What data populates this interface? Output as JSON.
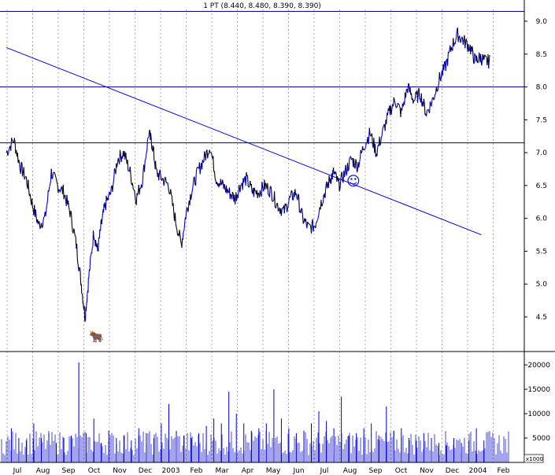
{
  "chart_data": {
    "type": "line",
    "title": "1 PT (8.440, 8.480, 8.390, 8.390)",
    "price_ylim": [
      4.0,
      9.25
    ],
    "price_y_ticks": [
      4.5,
      5.0,
      5.5,
      6.0,
      6.5,
      7.0,
      7.5,
      8.0,
      8.5,
      9.0
    ],
    "price_y_tick_labels": [
      "4.5",
      "5.0",
      "5.5",
      "6.0",
      "6.5",
      "7.0",
      "7.5",
      "8.0",
      "8.5",
      "9.0"
    ],
    "volume_ylim": [
      0,
      24000
    ],
    "volume_y_ticks": [
      5000,
      10000,
      15000,
      20000
    ],
    "volume_y_tick_labels": [
      "5000",
      "10000",
      "15000",
      "20000"
    ],
    "volume_unit_label": "x1000",
    "month_labels": [
      "Jul",
      "Aug",
      "Sep",
      "Oct",
      "Nov",
      "Dec",
      "2003",
      "Feb",
      "Mar",
      "Apr",
      "May",
      "Jun",
      "Jul",
      "Aug",
      "Sep",
      "Oct",
      "Nov",
      "Dec",
      "2004",
      "Feb"
    ],
    "grid": true,
    "horizontal_levels": [
      9.15,
      8.0,
      7.15
    ],
    "trendline": {
      "x": [
        0,
        19.0
      ],
      "y": [
        8.6,
        5.75
      ]
    },
    "price_series": {
      "name": "",
      "x": [
        0,
        0.3,
        0.55,
        0.8,
        1.05,
        1.3,
        1.55,
        1.8,
        2.05,
        2.3,
        2.55,
        2.8,
        3.0,
        3.15,
        3.3,
        3.5,
        3.65,
        3.8,
        3.95,
        4.2,
        4.45,
        4.7,
        4.95,
        5.2,
        5.45,
        5.7,
        5.85,
        6.0,
        6.25,
        6.5,
        6.75,
        7.0,
        7.2,
        7.4,
        7.65,
        7.9,
        8.15,
        8.4,
        8.65,
        8.9,
        9.15,
        9.35,
        9.6,
        9.85,
        10.1,
        10.35,
        10.6,
        10.85,
        11.1,
        11.35,
        11.6,
        11.85,
        12.1,
        12.35,
        12.55,
        12.75,
        12.95,
        13.1,
        13.3,
        13.55,
        13.8,
        14.05,
        14.3,
        14.55,
        14.8,
        15.05,
        15.3,
        15.55,
        15.8,
        16.05,
        16.3,
        16.55,
        16.8,
        17.05,
        17.3,
        17.55,
        17.8,
        18.05,
        18.3,
        18.55,
        18.75,
        18.95,
        19.15,
        19.35,
        19.55,
        19.75,
        19.95,
        20.15
      ],
      "y": [
        7.0,
        7.2,
        6.8,
        6.6,
        6.2,
        5.9,
        6.0,
        6.7,
        6.5,
        6.4,
        6.1,
        5.6,
        5.0,
        4.5,
        5.1,
        5.8,
        5.5,
        5.9,
        6.2,
        6.4,
        6.9,
        7.0,
        6.7,
        6.3,
        6.6,
        7.3,
        7.1,
        6.7,
        6.6,
        6.5,
        6.0,
        5.6,
        6.1,
        6.4,
        6.7,
        6.9,
        7.1,
        6.6,
        6.5,
        6.4,
        6.3,
        6.5,
        6.6,
        6.4,
        6.4,
        6.5,
        6.4,
        6.2,
        6.1,
        6.3,
        6.4,
        6.0,
        5.85,
        5.9,
        6.2,
        6.4,
        6.6,
        6.7,
        6.5,
        6.7,
        6.9,
        6.8,
        7.1,
        7.3,
        7.0,
        7.3,
        7.6,
        7.8,
        7.6,
        8.0,
        7.8,
        7.9,
        7.6,
        7.8,
        8.1,
        8.3,
        8.6,
        8.8,
        8.7,
        8.6,
        8.4,
        8.45,
        8.39,
        8.39,
        8.39,
        8.39,
        8.39,
        8.39
      ]
    },
    "volume_series": {
      "name": "",
      "x": [
        0.2,
        0.5,
        0.8,
        1.1,
        1.4,
        1.7,
        2.0,
        2.3,
        2.6,
        2.9,
        3.2,
        3.5,
        3.8,
        4.1,
        4.4,
        4.7,
        5.0,
        5.3,
        5.6,
        5.9,
        6.2,
        6.5,
        6.8,
        7.1,
        7.4,
        7.7,
        8.0,
        8.3,
        8.6,
        8.9,
        9.2,
        9.5,
        9.8,
        10.1,
        10.4,
        10.7,
        11.0,
        11.3,
        11.6,
        11.9,
        12.2,
        12.5,
        12.8,
        13.1,
        13.4,
        13.7,
        14.0,
        14.3,
        14.6,
        14.9,
        15.2,
        15.5,
        15.8,
        16.1,
        16.4,
        16.7,
        17.0,
        17.3,
        17.6,
        17.9,
        18.2,
        18.5,
        18.8,
        19.1
      ],
      "y": [
        7000,
        5000,
        4500,
        8000,
        5000,
        6000,
        4000,
        5000,
        5500,
        20500,
        6000,
        9000,
        4000,
        6500,
        5000,
        5500,
        4500,
        7000,
        6000,
        5000,
        8000,
        12000,
        6500,
        5500,
        5000,
        6000,
        7500,
        9000,
        8000,
        14500,
        10000,
        8000,
        6500,
        7000,
        8000,
        15000,
        9000,
        7000,
        6000,
        6500,
        8000,
        10500,
        8500,
        7000,
        13500,
        5500,
        6000,
        7000,
        8000,
        5500,
        11500,
        6500,
        7000,
        5000,
        4500,
        6000,
        5000,
        4000,
        3500,
        5000,
        4000,
        4500,
        7000,
        4500
      ]
    }
  },
  "markers": {
    "smiley_glyph": "☺",
    "bull_glyph": "🐂"
  },
  "colors": {
    "price_line": "#0000cc",
    "price_dark": "#000000",
    "volume_bar": "#0000cc",
    "grid": "#9a9a9a",
    "level_line": "#0000a0",
    "trendline": "#0000cc",
    "frame": "#000000"
  }
}
